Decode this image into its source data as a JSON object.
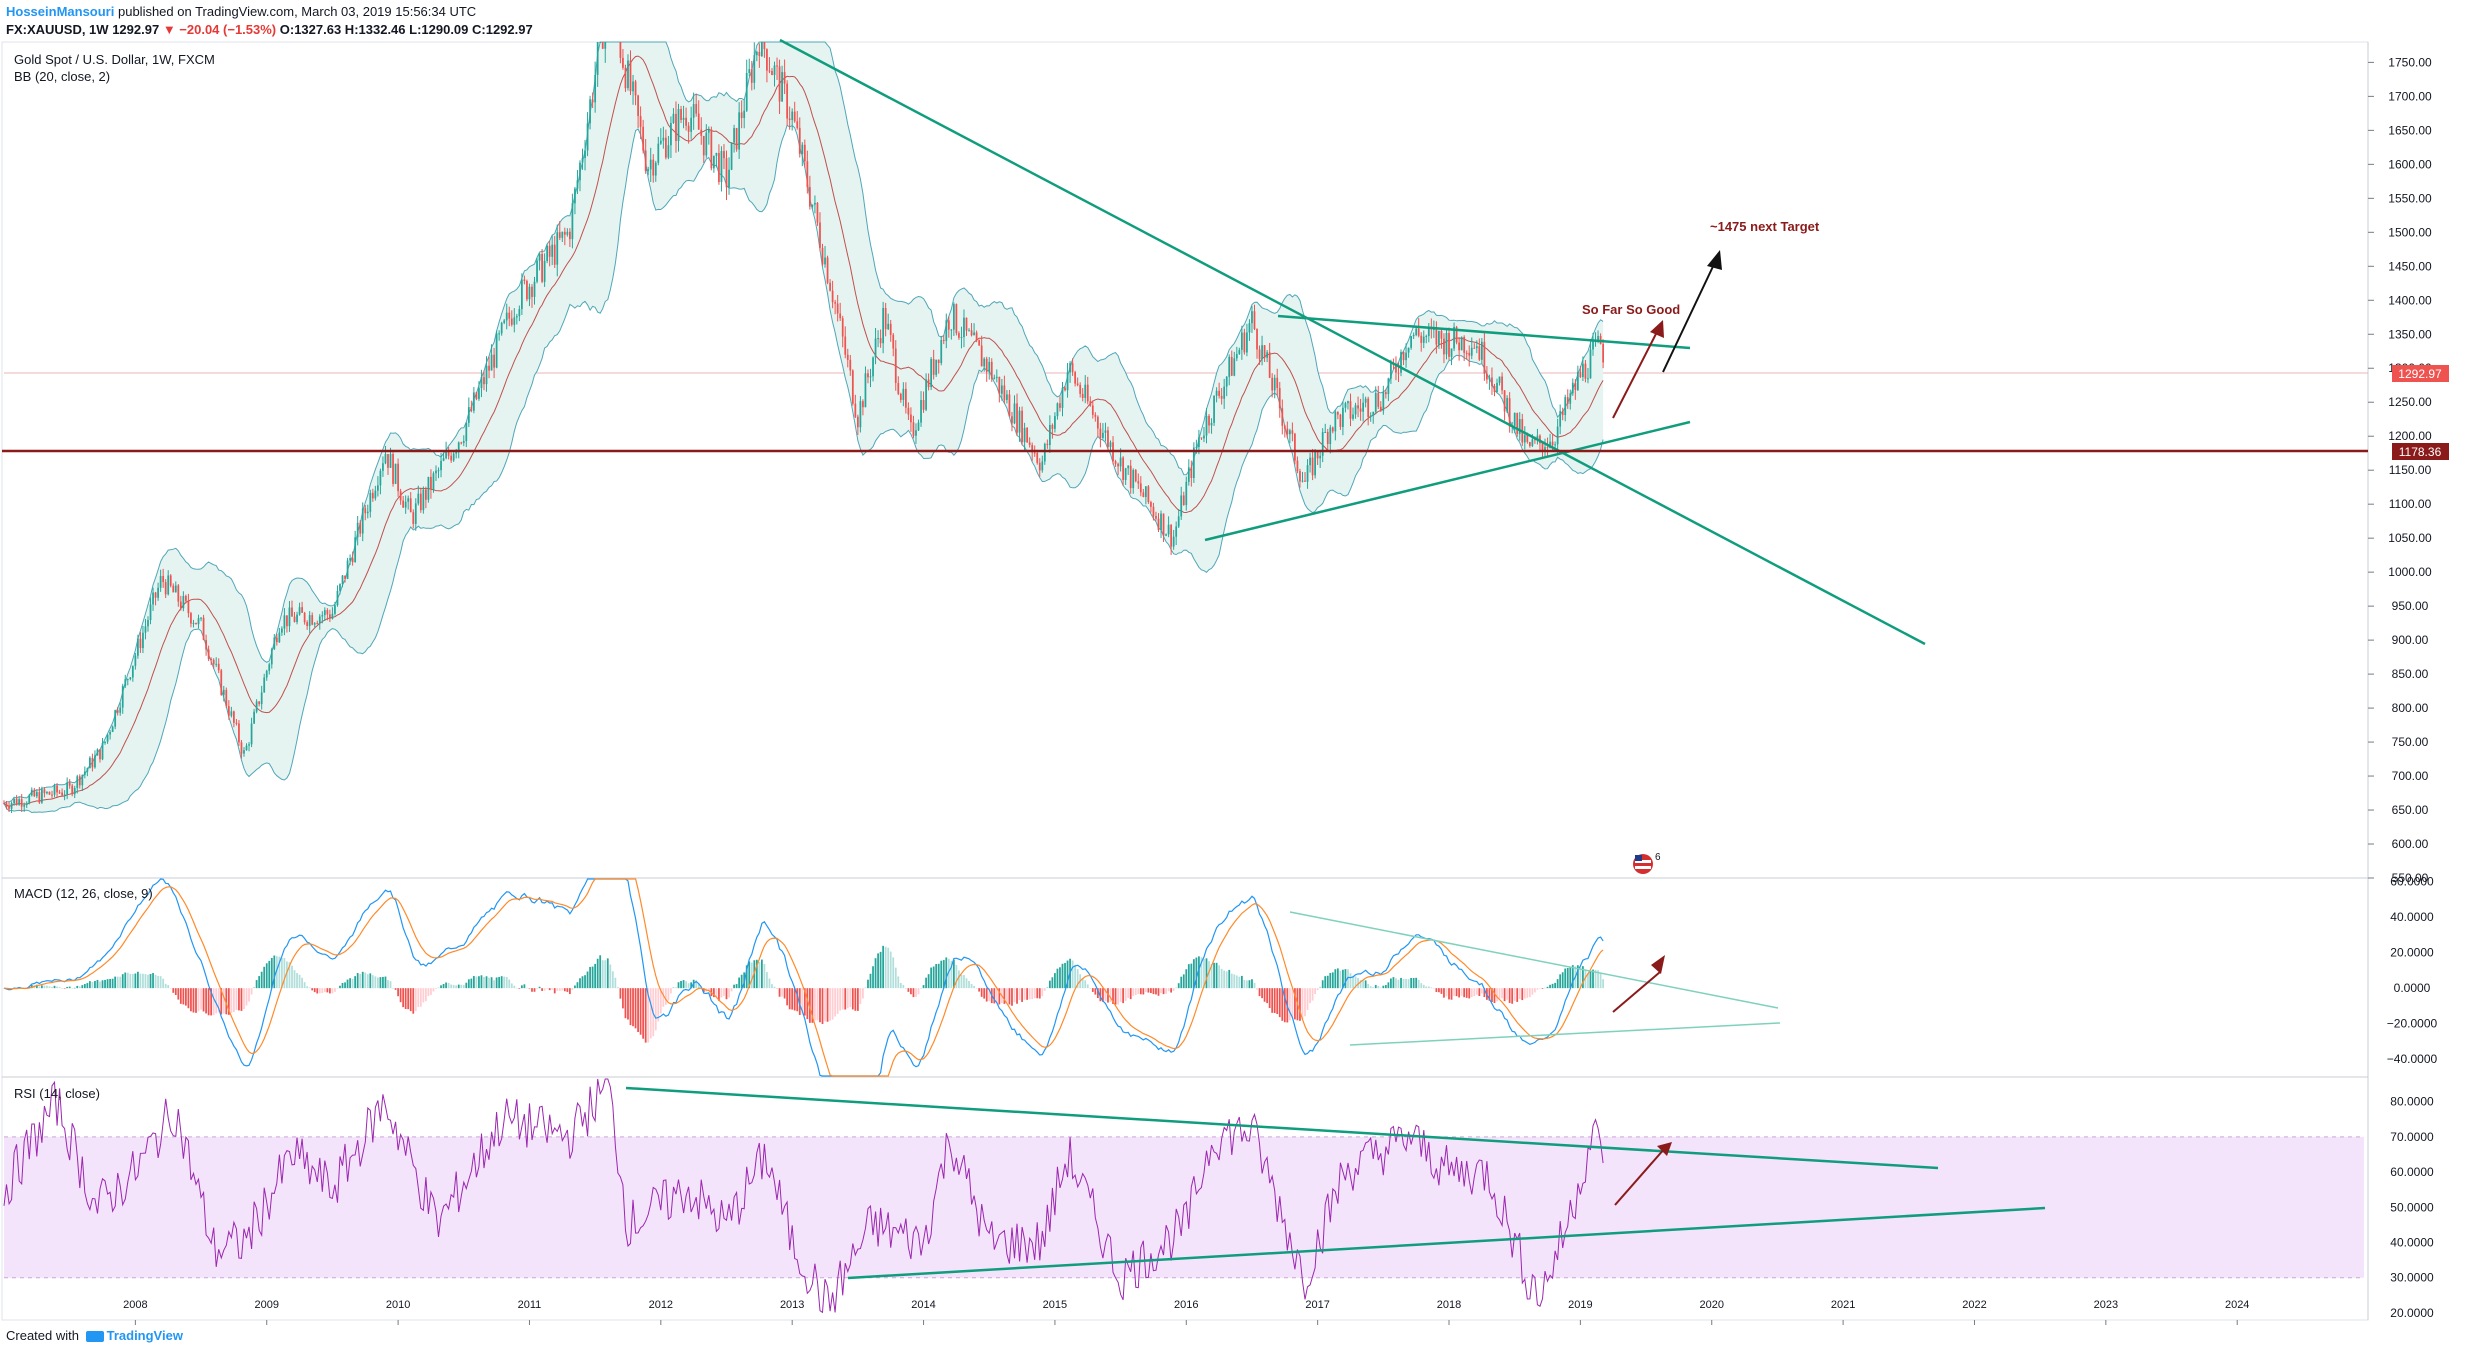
{
  "header": {
    "author": "HosseinMansouri",
    "published": "published on TradingView.com, March 03, 2019 15:56:34 UTC",
    "symbol": "FX:XAUUSD, 1W",
    "last": "1292.97",
    "change": "▼ −20.04 (−1.53%)",
    "ohlc": "O:1327.63  H:1332.46  L:1290.09  C:1292.97"
  },
  "legends": {
    "main": "Gold Spot / U.S. Dollar, 1W, FXCM",
    "bb": "BB (20, close, 2)",
    "macd": "MACD (12, 26, close, 9)",
    "rsi": "RSI (14, close)"
  },
  "annotations": {
    "target": "~1475 next Target",
    "sofar": "So Far So Good"
  },
  "footer": {
    "created": "Created with",
    "brand": "TradingView"
  },
  "colors": {
    "up": "#26a69a",
    "down": "#ef5350",
    "trend": "#0f9d7e",
    "support": "#8b1a1a",
    "bb": "#4fa7b8",
    "rsi": "#9c27b0",
    "macd": "#2196f3",
    "signal": "#ff8a2a"
  },
  "chart_data": [
    {
      "type": "candlestick",
      "title": "Gold Spot / U.S. Dollar, 1W, FXCM",
      "x_ticks": [
        "2008",
        "2009",
        "2010",
        "2011",
        "2012",
        "2013",
        "2014",
        "2015",
        "2016",
        "2017",
        "2018",
        "2019",
        "2020",
        "2021",
        "2022",
        "2023",
        "2024"
      ],
      "y_ticks": [
        550,
        600,
        650,
        700,
        750,
        800,
        850,
        900,
        950,
        1000,
        1050,
        1100,
        1150,
        1200,
        1250,
        1300,
        1350,
        1400,
        1450,
        1500,
        1550,
        1600,
        1650,
        1700,
        1750
      ],
      "ylim": [
        550,
        1780
      ],
      "last_price": 1292.97,
      "support_level": 1178.36,
      "price_path": [
        [
          2007.0,
          660
        ],
        [
          2007.5,
          680
        ],
        [
          2007.75,
          740
        ],
        [
          2008.2,
          990
        ],
        [
          2008.5,
          920
        ],
        [
          2008.83,
          730
        ],
        [
          2009.1,
          930
        ],
        [
          2009.5,
          940
        ],
        [
          2009.9,
          1180
        ],
        [
          2010.1,
          1080
        ],
        [
          2010.5,
          1210
        ],
        [
          2010.9,
          1400
        ],
        [
          2011.3,
          1500
        ],
        [
          2011.6,
          1850
        ],
        [
          2011.9,
          1600
        ],
        [
          2012.2,
          1680
        ],
        [
          2012.5,
          1580
        ],
        [
          2012.75,
          1790
        ],
        [
          2013.0,
          1670
        ],
        [
          2013.3,
          1420
        ],
        [
          2013.5,
          1230
        ],
        [
          2013.7,
          1380
        ],
        [
          2013.9,
          1200
        ],
        [
          2014.2,
          1380
        ],
        [
          2014.5,
          1300
        ],
        [
          2014.9,
          1160
        ],
        [
          2015.1,
          1300
        ],
        [
          2015.5,
          1160
        ],
        [
          2015.9,
          1050
        ],
        [
          2016.1,
          1200
        ],
        [
          2016.5,
          1370
        ],
        [
          2016.9,
          1130
        ],
        [
          2017.1,
          1220
        ],
        [
          2017.5,
          1260
        ],
        [
          2017.7,
          1350
        ],
        [
          2018.0,
          1340
        ],
        [
          2018.2,
          1340
        ],
        [
          2018.6,
          1180
        ],
        [
          2018.8,
          1200
        ],
        [
          2019.0,
          1290
        ],
        [
          2019.17,
          1340
        ],
        [
          2019.18,
          1293
        ]
      ]
    },
    {
      "type": "line",
      "title": "MACD (12, 26, close, 9)",
      "y_ticks": [
        -40,
        -20,
        0,
        20,
        40,
        60
      ],
      "ylim": [
        -50,
        62
      ],
      "series": [
        {
          "name": "MACD",
          "values": []
        },
        {
          "name": "Signal",
          "values": []
        }
      ]
    },
    {
      "type": "line",
      "title": "RSI (14, close)",
      "y_ticks": [
        20,
        30,
        40,
        50,
        60,
        70,
        80
      ],
      "ylim": [
        18,
        87
      ],
      "band": [
        30,
        70
      ],
      "rsi_path": [
        [
          2007.0,
          55
        ],
        [
          2007.4,
          80
        ],
        [
          2007.7,
          50
        ],
        [
          2008.0,
          60
        ],
        [
          2008.3,
          78
        ],
        [
          2008.6,
          38
        ],
        [
          2008.83,
          40
        ],
        [
          2009.2,
          65
        ],
        [
          2009.5,
          55
        ],
        [
          2009.9,
          80
        ],
        [
          2010.3,
          45
        ],
        [
          2010.8,
          75
        ],
        [
          2011.3,
          70
        ],
        [
          2011.6,
          85
        ],
        [
          2011.75,
          45
        ],
        [
          2012.2,
          55
        ],
        [
          2012.5,
          45
        ],
        [
          2012.8,
          65
        ],
        [
          2013.0,
          40
        ],
        [
          2013.27,
          22
        ],
        [
          2013.6,
          45
        ],
        [
          2014.0,
          40
        ],
        [
          2014.2,
          70
        ],
        [
          2014.5,
          40
        ],
        [
          2014.9,
          40
        ],
        [
          2015.1,
          65
        ],
        [
          2015.5,
          30
        ],
        [
          2016.0,
          45
        ],
        [
          2016.2,
          70
        ],
        [
          2016.5,
          72
        ],
        [
          2016.9,
          30
        ],
        [
          2017.2,
          60
        ],
        [
          2017.7,
          70
        ],
        [
          2018.0,
          60
        ],
        [
          2018.3,
          60
        ],
        [
          2018.6,
          30
        ],
        [
          2018.7,
          25
        ],
        [
          2018.9,
          45
        ],
        [
          2019.1,
          72
        ],
        [
          2019.18,
          62
        ]
      ]
    }
  ]
}
